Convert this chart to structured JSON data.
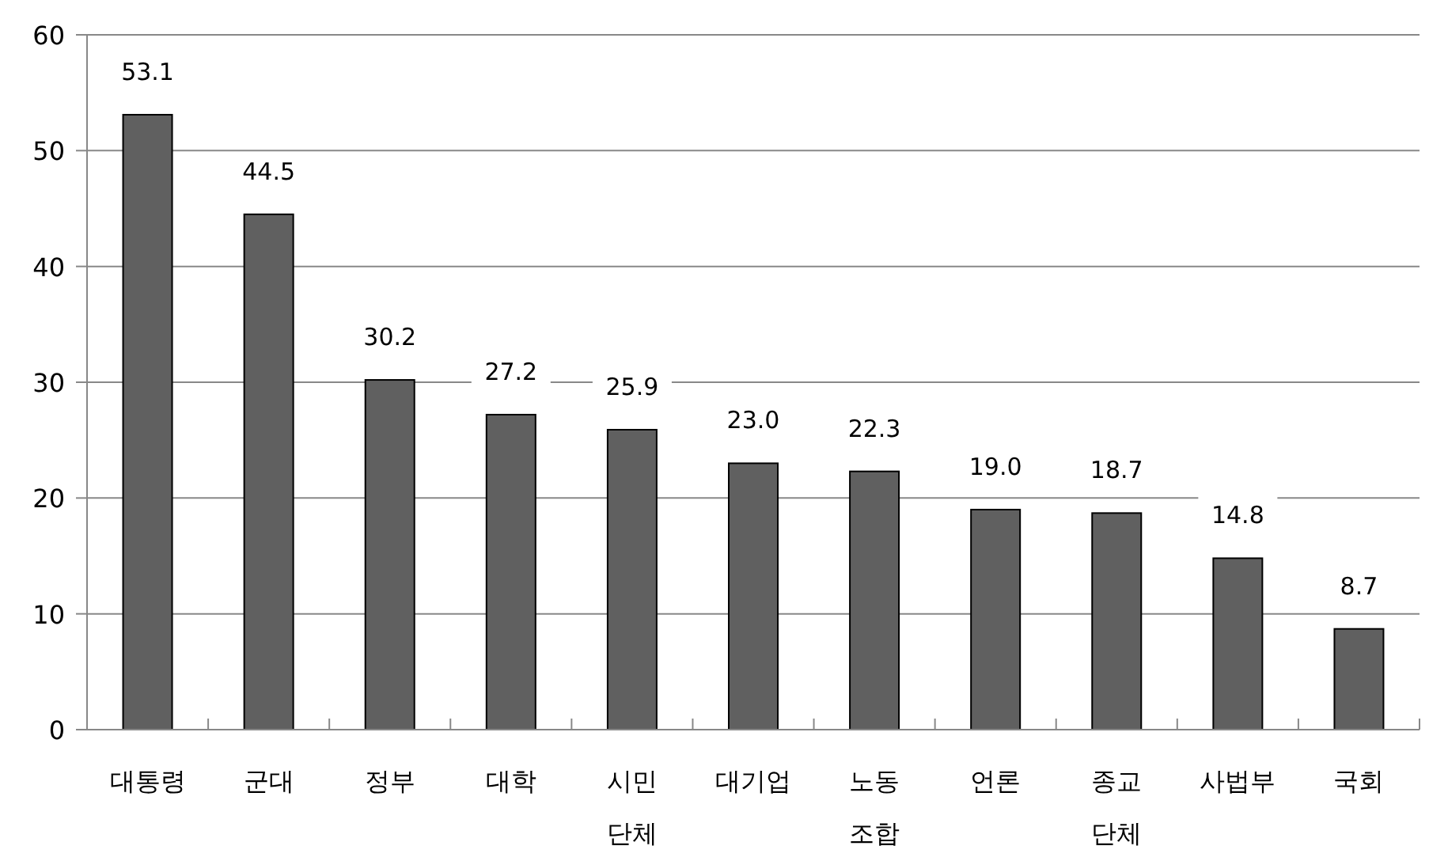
{
  "chart_data": {
    "type": "bar",
    "categories": [
      "대통령",
      "군대",
      "정부",
      "대학",
      "시민\n단체",
      "대기업",
      "노동\n조합",
      "언론",
      "종교\n단체",
      "사법부",
      "국회"
    ],
    "values": [
      53.1,
      44.5,
      30.2,
      27.2,
      25.9,
      23.0,
      22.3,
      19.0,
      18.7,
      14.8,
      8.7
    ],
    "value_labels": [
      "53.1",
      "44.5",
      "30.2",
      "27.2",
      "25.9",
      "23.0",
      "22.3",
      "19.0",
      "18.7",
      "14.8",
      "8.7"
    ],
    "color": "#606060",
    "ylim": [
      0,
      60
    ],
    "yticks": [
      0,
      10,
      20,
      30,
      40,
      50,
      60
    ],
    "grid": "y"
  }
}
